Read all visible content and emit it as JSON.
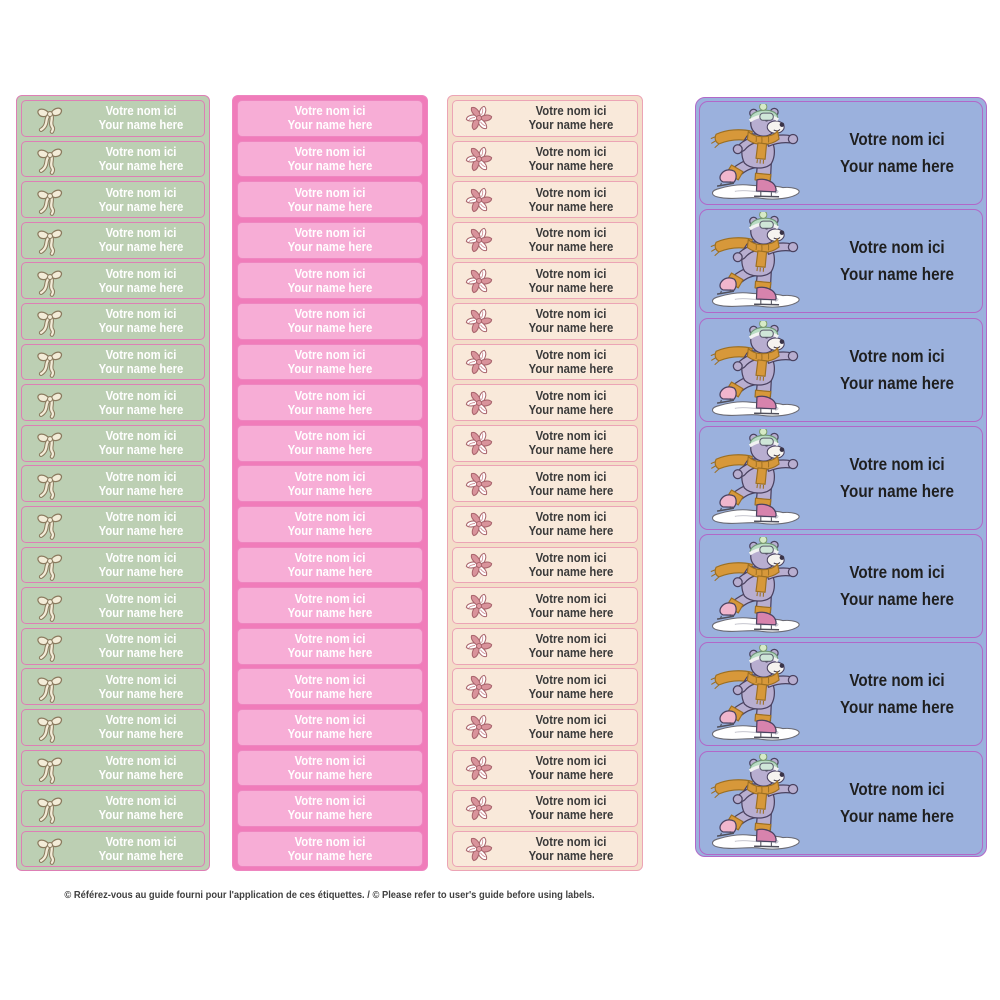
{
  "page": {
    "background_color": "#ffffff",
    "disclaimer": "© Référez-vous au guide fourni pour l'application de ces étiquettes. / © Please refer to user's guide before using labels."
  },
  "label_text": {
    "line1": "Votre nom ici",
    "line2": "Your name here"
  },
  "sheets": [
    {
      "id": "green-bow",
      "name": "green-bow-label-sheet",
      "icon": "ribbon-bow-icon",
      "label_count": 19,
      "colors": {
        "sheet": "#bccfb3",
        "label": "#bccfb3",
        "border": "#dd7fb5",
        "text": "#ffffff"
      }
    },
    {
      "id": "pink-plain",
      "name": "pink-plain-label-sheet",
      "icon": null,
      "label_count": 19,
      "colors": {
        "sheet": "#f07cba",
        "label": "#f7add6",
        "border": "#ee86c0",
        "text": "#ffffff"
      }
    },
    {
      "id": "cream-pinwheel",
      "name": "cream-pinwheel-label-sheet",
      "icon": "pinwheel-icon",
      "label_count": 19,
      "colors": {
        "sheet": "#f4ddc9",
        "label": "#f9e9da",
        "border": "#eca4b5",
        "text": "#3a3a3a"
      }
    },
    {
      "id": "blue-bear",
      "name": "blue-skating-bear-label-sheet",
      "icon": "skating-polar-bear-illustration",
      "label_count": 7,
      "colors": {
        "sheet": "#9bb1dd",
        "label": "#9bb1dd",
        "border": "#b168c8",
        "text": "#1f1f1f"
      }
    }
  ]
}
